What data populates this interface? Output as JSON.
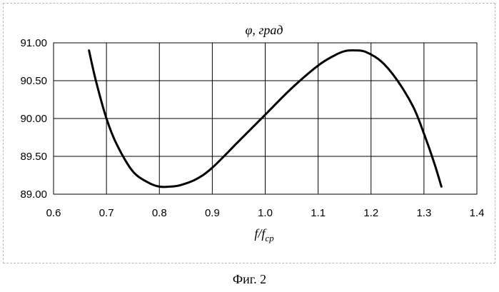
{
  "chart_data": {
    "type": "line",
    "title": "φ, град",
    "ylabel": "",
    "xlim": [
      0.6,
      1.4
    ],
    "ylim": [
      89.0,
      91.0
    ],
    "x_ticks": [
      "0.6",
      "0.7",
      "0.8",
      "0.9",
      "1.0",
      "1.1",
      "1.2",
      "1.3",
      "1.4"
    ],
    "y_ticks": [
      "89.00",
      "89.50",
      "90.00",
      "90.50",
      "91.00"
    ],
    "grid": true,
    "series": [
      {
        "color": "#000000",
        "x": [
          0.667,
          0.68,
          0.7,
          0.72,
          0.75,
          0.78,
          0.8,
          0.82,
          0.84,
          0.87,
          0.9,
          0.95,
          1.0,
          1.05,
          1.1,
          1.13,
          1.15,
          1.17,
          1.19,
          1.22,
          1.25,
          1.28,
          1.3,
          1.32,
          1.333
        ],
        "y": [
          90.9,
          90.5,
          90.0,
          89.65,
          89.3,
          89.15,
          89.1,
          89.1,
          89.12,
          89.2,
          89.35,
          89.7,
          90.05,
          90.4,
          90.7,
          90.83,
          90.89,
          90.9,
          90.88,
          90.75,
          90.5,
          90.15,
          89.8,
          89.4,
          89.1
        ]
      }
    ]
  },
  "xlabel_main": "f/f",
  "xlabel_sub": "ср",
  "caption": "Фиг. 2"
}
